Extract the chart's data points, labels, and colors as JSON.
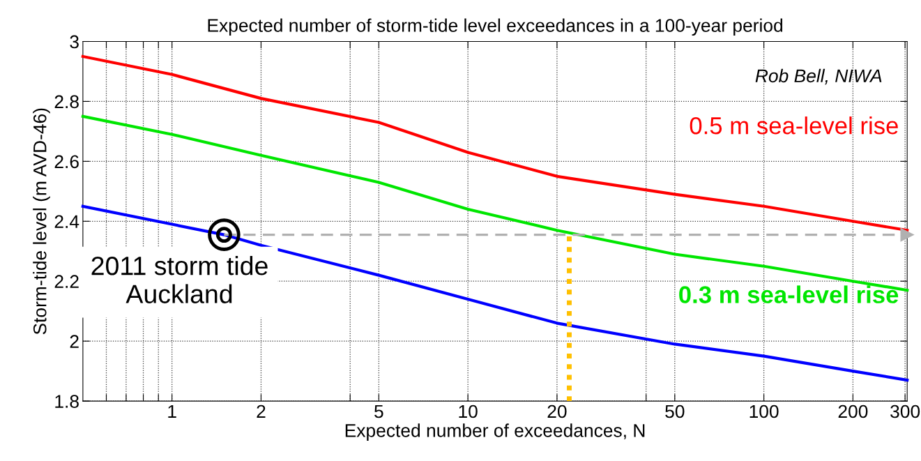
{
  "chart_data": {
    "type": "line",
    "title": "Expected number of storm-tide level exceedances in a 100-year period",
    "xlabel": "Expected number of exceedances, N",
    "ylabel": "Storm-tide level (m AVD-46)",
    "log": "x",
    "xlim": [
      0.5,
      305
    ],
    "ylim": [
      1.8,
      3
    ],
    "xticks": [
      {
        "value": 0.6,
        "label": null
      },
      {
        "value": 0.7,
        "label": null
      },
      {
        "value": 0.8,
        "label": null
      },
      {
        "value": 0.9,
        "label": null
      },
      1,
      2,
      {
        "value": 4,
        "label": null
      },
      5,
      10,
      20,
      {
        "value": 40,
        "label": null
      },
      50,
      100,
      200,
      300
    ],
    "yticks": [
      {
        "value": 1.8,
        "label": "1.8"
      },
      {
        "value": 2.0,
        "label": "2"
      },
      {
        "value": 2.2,
        "label": "2.2"
      },
      {
        "value": 2.4,
        "label": "2.4"
      },
      {
        "value": 2.6,
        "label": "2.6"
      },
      {
        "value": 2.8,
        "label": "2.8"
      },
      {
        "value": 3.0,
        "label": "3"
      }
    ],
    "grid": true,
    "series": [
      {
        "name": "0.5 m sea-level rise",
        "color": "#ff0000",
        "x": [
          0.5,
          1,
          2,
          5,
          10,
          20,
          50,
          100,
          200,
          305
        ],
        "values": [
          2.95,
          2.89,
          2.81,
          2.73,
          2.63,
          2.55,
          2.49,
          2.45,
          2.4,
          2.37
        ]
      },
      {
        "name": "0.3 m sea-level rise",
        "color": "#00e600",
        "x": [
          0.5,
          1,
          2,
          5,
          10,
          20,
          50,
          100,
          200,
          305
        ],
        "values": [
          2.75,
          2.69,
          2.62,
          2.53,
          2.44,
          2.37,
          2.29,
          2.25,
          2.2,
          2.17
        ]
      },
      {
        "color": "#0000ff",
        "x": [
          0.5,
          1,
          1.5,
          2,
          5,
          10,
          20,
          50,
          100,
          200,
          305
        ],
        "values": [
          2.45,
          2.39,
          2.355,
          2.32,
          2.22,
          2.14,
          2.06,
          1.99,
          1.95,
          1.9,
          1.87
        ]
      },
      {
        "type": "line",
        "line_style": "dashed",
        "color": "#b0b0b0",
        "x": [
          1.5,
          305
        ],
        "values": [
          2.355,
          2.355
        ]
      },
      {
        "type": "line",
        "line_style": "dotted",
        "color": "#ffc000",
        "x": [
          22,
          22
        ],
        "values": [
          1.8,
          2.355
        ]
      },
      {
        "type": "scatter",
        "marker": "circle",
        "color": "#000000",
        "x": [
          1.5
        ],
        "values": [
          2.355
        ]
      }
    ],
    "annotations": [
      "Rob Bell, NIWA",
      {
        "text": "2011 storm tide\nAuckland",
        "x": 1.5,
        "y": 2.355
      }
    ]
  }
}
